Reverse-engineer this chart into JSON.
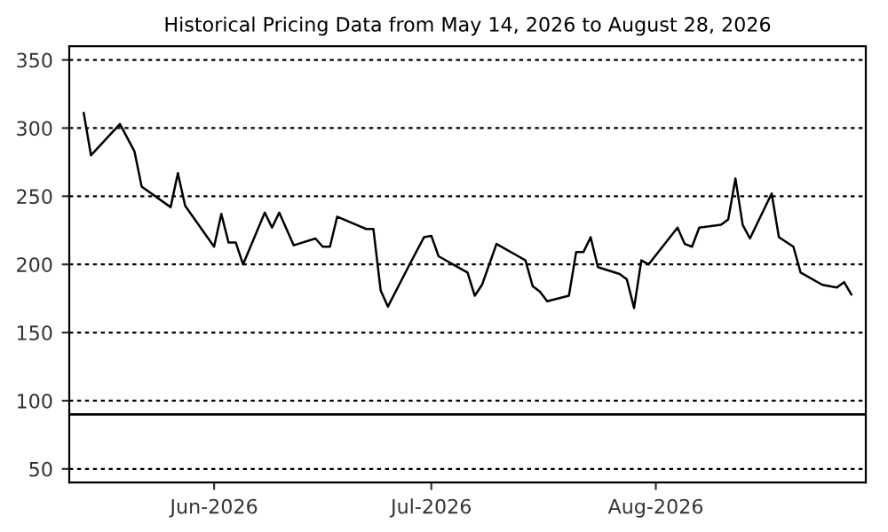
{
  "chart_data": {
    "type": "line",
    "title": "Historical Pricing Data from May 14, 2026 to August 28, 2026",
    "x": [
      "2026-05-14",
      "2026-05-15",
      "2026-05-19",
      "2026-05-21",
      "2026-05-22",
      "2026-05-26",
      "2026-05-27",
      "2026-05-28",
      "2026-06-01",
      "2026-06-02",
      "2026-06-03",
      "2026-06-04",
      "2026-06-05",
      "2026-06-08",
      "2026-06-09",
      "2026-06-10",
      "2026-06-12",
      "2026-06-15",
      "2026-06-16",
      "2026-06-17",
      "2026-06-18",
      "2026-06-22",
      "2026-06-23",
      "2026-06-24",
      "2026-06-25",
      "2026-06-28",
      "2026-06-30",
      "2026-07-01",
      "2026-07-02",
      "2026-07-06",
      "2026-07-07",
      "2026-07-08",
      "2026-07-10",
      "2026-07-13",
      "2026-07-14",
      "2026-07-15",
      "2026-07-16",
      "2026-07-17",
      "2026-07-20",
      "2026-07-21",
      "2026-07-22",
      "2026-07-23",
      "2026-07-24",
      "2026-07-27",
      "2026-07-28",
      "2026-07-29",
      "2026-07-30",
      "2026-07-31",
      "2026-08-04",
      "2026-08-05",
      "2026-08-06",
      "2026-08-07",
      "2026-08-10",
      "2026-08-11",
      "2026-08-12",
      "2026-08-13",
      "2026-08-14",
      "2026-08-17",
      "2026-08-18",
      "2026-08-20",
      "2026-08-21",
      "2026-08-24",
      "2026-08-26",
      "2026-08-27",
      "2026-08-28"
    ],
    "series": [
      {
        "color": "#000000",
        "values": [
          311,
          280,
          303,
          283,
          257,
          242,
          267,
          243,
          213,
          237,
          216,
          216,
          200,
          238,
          227,
          238,
          214,
          219,
          213,
          213,
          235,
          226,
          226,
          181,
          169,
          200,
          220,
          221,
          206,
          194,
          177,
          185,
          215,
          206,
          203,
          184,
          180,
          173,
          177,
          209,
          209,
          220,
          198,
          193,
          189,
          168,
          203,
          200,
          227,
          215,
          213,
          227,
          229,
          233,
          263,
          229,
          219,
          252,
          220,
          213,
          194,
          185,
          183,
          187,
          178
        ]
      }
    ],
    "xlim": [
      "2026-05-12",
      "2026-08-30"
    ],
    "xticks": [
      {
        "value": "2026-06-01",
        "label": "Jun-2026"
      },
      {
        "value": "2026-07-01",
        "label": "Jul-2026"
      },
      {
        "value": "2026-08-01",
        "label": "Aug-2026"
      }
    ],
    "ylim": [
      40,
      360
    ],
    "yticks": [
      50,
      100,
      150,
      200,
      250,
      300,
      350
    ],
    "grid": "y",
    "line_style": "solid",
    "marker": "none",
    "ref_lines": [
      {
        "axis": "y",
        "value": 90,
        "color": "#000000",
        "line_style": "solid"
      }
    ]
  }
}
